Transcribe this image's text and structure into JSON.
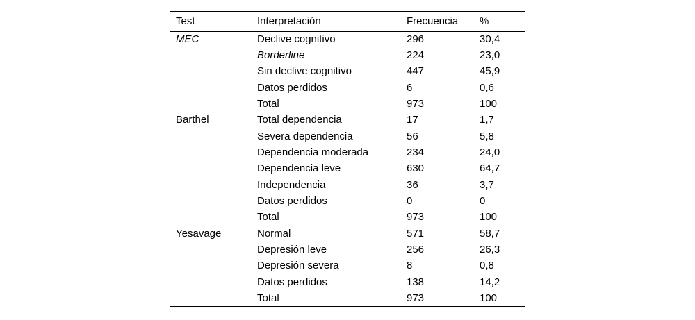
{
  "table": {
    "columns": {
      "test": "Test",
      "interpretation": "Interpretación",
      "frequency": "Frecuencia",
      "percent": "%"
    },
    "rows": [
      {
        "test": "MEC",
        "test_italic": true,
        "interpretation": "Declive cognitivo",
        "interpretation_italic": false,
        "frequency": "296",
        "percent": "30,4"
      },
      {
        "test": "",
        "test_italic": false,
        "interpretation": "Borderline",
        "interpretation_italic": true,
        "frequency": "224",
        "percent": "23,0"
      },
      {
        "test": "",
        "test_italic": false,
        "interpretation": "Sin declive cognitivo",
        "interpretation_italic": false,
        "frequency": "447",
        "percent": "45,9"
      },
      {
        "test": "",
        "test_italic": false,
        "interpretation": "Datos perdidos",
        "interpretation_italic": false,
        "frequency": "6",
        "percent": "0,6"
      },
      {
        "test": "",
        "test_italic": false,
        "interpretation": "Total",
        "interpretation_italic": false,
        "frequency": "973",
        "percent": "100"
      },
      {
        "test": "Barthel",
        "test_italic": false,
        "interpretation": "Total dependencia",
        "interpretation_italic": false,
        "frequency": "17",
        "percent": "1,7"
      },
      {
        "test": "",
        "test_italic": false,
        "interpretation": "Severa dependencia",
        "interpretation_italic": false,
        "frequency": "56",
        "percent": "5,8"
      },
      {
        "test": "",
        "test_italic": false,
        "interpretation": "Dependencia moderada",
        "interpretation_italic": false,
        "frequency": "234",
        "percent": "24,0"
      },
      {
        "test": "",
        "test_italic": false,
        "interpretation": "Dependencia leve",
        "interpretation_italic": false,
        "frequency": "630",
        "percent": "64,7"
      },
      {
        "test": "",
        "test_italic": false,
        "interpretation": "Independencia",
        "interpretation_italic": false,
        "frequency": "36",
        "percent": "3,7"
      },
      {
        "test": "",
        "test_italic": false,
        "interpretation": "Datos perdidos",
        "interpretation_italic": false,
        "frequency": "0",
        "percent": "0"
      },
      {
        "test": "",
        "test_italic": false,
        "interpretation": "Total",
        "interpretation_italic": false,
        "frequency": "973",
        "percent": "100"
      },
      {
        "test": "Yesavage",
        "test_italic": false,
        "interpretation": "Normal",
        "interpretation_italic": false,
        "frequency": "571",
        "percent": "58,7"
      },
      {
        "test": "",
        "test_italic": false,
        "interpretation": "Depresión leve",
        "interpretation_italic": false,
        "frequency": "256",
        "percent": "26,3"
      },
      {
        "test": "",
        "test_italic": false,
        "interpretation": "Depresión severa",
        "interpretation_italic": false,
        "frequency": "8",
        "percent": "0,8"
      },
      {
        "test": "",
        "test_italic": false,
        "interpretation": "Datos perdidos",
        "interpretation_italic": false,
        "frequency": "138",
        "percent": "14,2"
      },
      {
        "test": "",
        "test_italic": false,
        "interpretation": "Total",
        "interpretation_italic": false,
        "frequency": "973",
        "percent": "100"
      }
    ]
  }
}
